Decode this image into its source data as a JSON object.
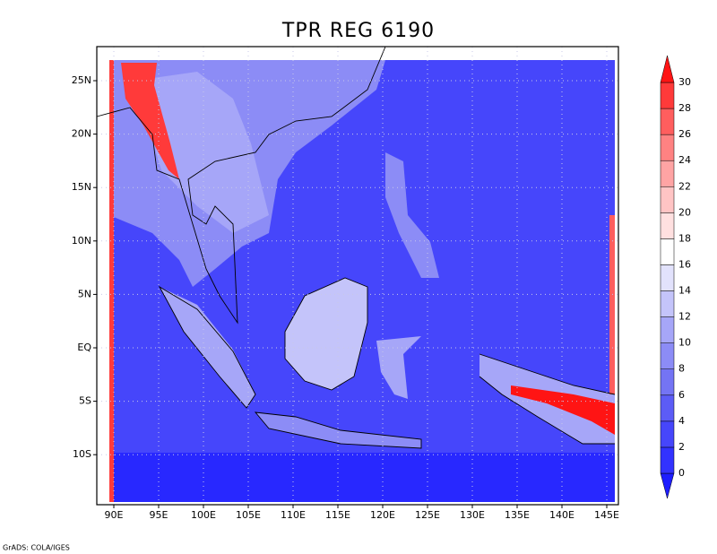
{
  "title": "TPR REG 6190",
  "x_labels": [
    "90E",
    "95E",
    "100E",
    "105E",
    "110E",
    "115E",
    "120E",
    "125E",
    "130E",
    "135E",
    "140E",
    "145E"
  ],
  "y_labels": [
    "25N",
    "20N",
    "15N",
    "10N",
    "5N",
    "EQ",
    "5S",
    "10S"
  ],
  "colorbar": {
    "levels": [
      0,
      2,
      4,
      6,
      8,
      10,
      12,
      14,
      16,
      18,
      20,
      22,
      24,
      26,
      28,
      30
    ],
    "colors": [
      "#1e1eff",
      "#3232ff",
      "#4646fb",
      "#5c5cf6",
      "#7474f4",
      "#8c8cf6",
      "#a6a6f8",
      "#c4c4fa",
      "#e2e2fc",
      "#ffffff",
      "#ffe0e0",
      "#ffc4c4",
      "#ffa4a4",
      "#ff8282",
      "#ff5e5e",
      "#ff3a3a",
      "#ff1414"
    ]
  },
  "footer": "GrADS: COLA/IGES"
}
